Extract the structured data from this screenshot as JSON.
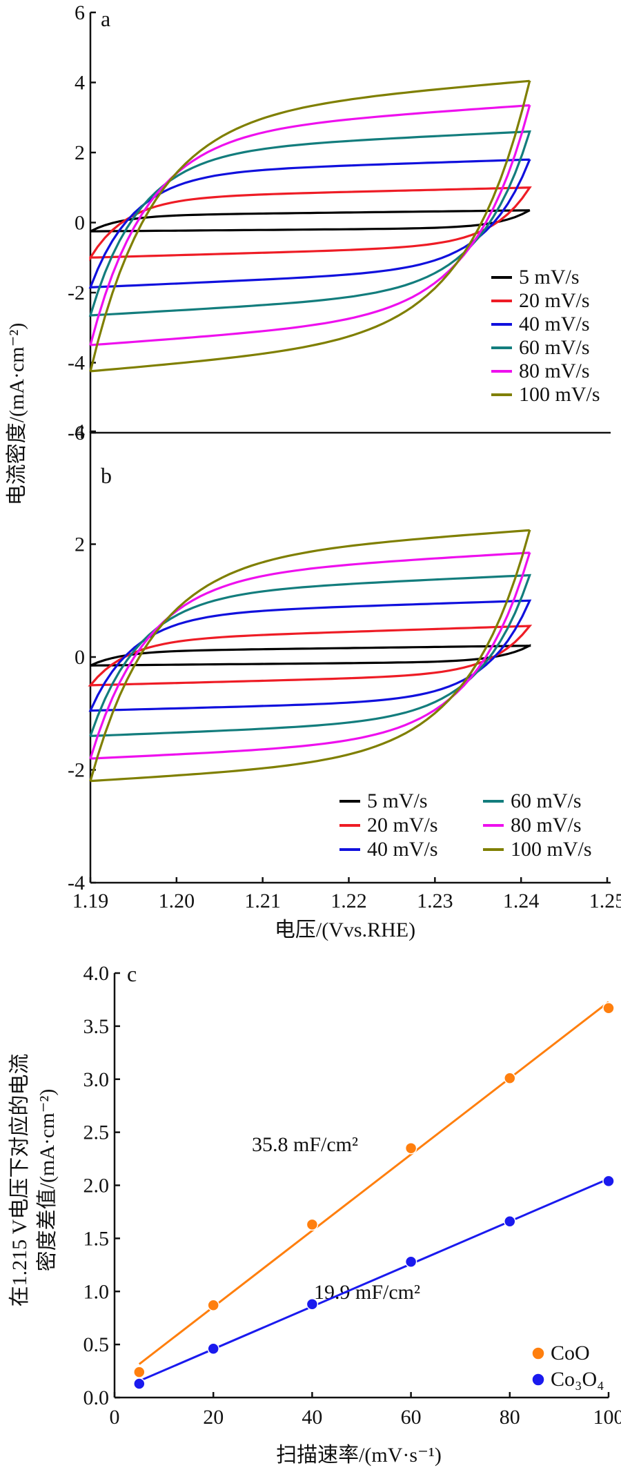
{
  "figure": {
    "shared_ylabel": "电流密度/(mA·cm⁻²)",
    "shared_xlabel": "电压/(Vvs.RHE)"
  },
  "chart_data": [
    {
      "panel": "a",
      "type": "line",
      "title": "",
      "xlim": [
        1.19,
        1.25
      ],
      "ylim": [
        -6,
        6
      ],
      "yticks": [
        "-6",
        "-4",
        "-2",
        "0",
        "2",
        "4",
        "6"
      ],
      "xticks": [],
      "legend_position": "bottom-right, single column",
      "series": [
        {
          "name": "5 mV/s",
          "color": "#000000",
          "x_range": [
            1.19,
            1.241
          ],
          "upper_current": [
            0.2,
            0.35
          ],
          "lower_current": [
            -0.25,
            -0.15
          ]
        },
        {
          "name": "20 mV/s",
          "color": "#ee1c25",
          "x_range": [
            1.19,
            1.241
          ],
          "upper_current": [
            0.7,
            1.0
          ],
          "lower_current": [
            -1.0,
            -0.65
          ]
        },
        {
          "name": "40 mV/s",
          "color": "#1010dd",
          "x_range": [
            1.19,
            1.241
          ],
          "upper_current": [
            1.4,
            1.8
          ],
          "lower_current": [
            -1.85,
            -1.3
          ]
        },
        {
          "name": "60 mV/s",
          "color": "#137d7d",
          "x_range": [
            1.19,
            1.241
          ],
          "upper_current": [
            2.0,
            2.6
          ],
          "lower_current": [
            -2.65,
            -1.95
          ]
        },
        {
          "name": "80 mV/s",
          "color": "#ee10ee",
          "x_range": [
            1.19,
            1.241
          ],
          "upper_current": [
            2.5,
            3.35
          ],
          "lower_current": [
            -3.5,
            -2.6
          ]
        },
        {
          "name": "100 mV/s",
          "color": "#7f7f00",
          "x_range": [
            1.19,
            1.241
          ],
          "upper_current": [
            3.0,
            4.05
          ],
          "lower_current": [
            -4.25,
            -3.2
          ]
        }
      ]
    },
    {
      "panel": "b",
      "type": "line",
      "title": "",
      "xlim": [
        1.19,
        1.25
      ],
      "ylim": [
        -4,
        4
      ],
      "yticks": [
        "-4",
        "-2",
        "0",
        "2",
        "4"
      ],
      "xticks": [
        "1.19",
        "1.20",
        "1.21",
        "1.22",
        "1.23",
        "1.24",
        "1.25"
      ],
      "legend_position": "bottom-right, two columns",
      "series": [
        {
          "name": "5 mV/s",
          "color": "#000000",
          "x_range": [
            1.19,
            1.241
          ],
          "upper_current": [
            0.1,
            0.2
          ],
          "lower_current": [
            -0.15,
            -0.08
          ]
        },
        {
          "name": "20 mV/s",
          "color": "#ee1c25",
          "x_range": [
            1.19,
            1.241
          ],
          "upper_current": [
            0.3,
            0.55
          ],
          "lower_current": [
            -0.5,
            -0.3
          ]
        },
        {
          "name": "40 mV/s",
          "color": "#1010dd",
          "x_range": [
            1.19,
            1.241
          ],
          "upper_current": [
            0.75,
            1.0
          ],
          "lower_current": [
            -0.95,
            -0.75
          ]
        },
        {
          "name": "60 mV/s",
          "color": "#137d7d",
          "x_range": [
            1.19,
            1.241
          ],
          "upper_current": [
            1.1,
            1.45
          ],
          "lower_current": [
            -1.4,
            -1.1
          ]
        },
        {
          "name": "80 mV/s",
          "color": "#ee10ee",
          "x_range": [
            1.19,
            1.241
          ],
          "upper_current": [
            1.4,
            1.85
          ],
          "lower_current": [
            -1.8,
            -1.45
          ]
        },
        {
          "name": "100 mV/s",
          "color": "#7f7f00",
          "x_range": [
            1.19,
            1.241
          ],
          "upper_current": [
            1.7,
            2.25
          ],
          "lower_current": [
            -2.2,
            -1.75
          ]
        }
      ]
    },
    {
      "panel": "c",
      "type": "scatter",
      "title": "",
      "xlabel": "扫描速率/(mV·s⁻¹)",
      "ylabel_line1": "在1.215 V电压下对应的电流",
      "ylabel_line2": "密度差值/(mA·cm⁻²)",
      "xlim": [
        0,
        100
      ],
      "ylim": [
        0,
        4
      ],
      "xticks": [
        "0",
        "20",
        "40",
        "60",
        "80",
        "100"
      ],
      "yticks": [
        "0.0",
        "0.5",
        "1.0",
        "1.5",
        "2.0",
        "2.5",
        "3.0",
        "3.5",
        "4.0"
      ],
      "legend_position": "bottom-right",
      "series": [
        {
          "name": "CoO",
          "color": "#ff7f0e",
          "x": [
            5,
            20,
            40,
            60,
            80,
            100
          ],
          "y": [
            0.24,
            0.87,
            1.63,
            2.35,
            3.01,
            3.67
          ],
          "fit_label": "35.8 mF/cm²"
        },
        {
          "name": "Co₃O₄",
          "color": "#1a1aee",
          "x": [
            5,
            20,
            40,
            60,
            80,
            100
          ],
          "y": [
            0.13,
            0.46,
            0.88,
            1.28,
            1.66,
            2.04
          ],
          "fit_label": "19.9 mF/cm²"
        }
      ]
    }
  ]
}
